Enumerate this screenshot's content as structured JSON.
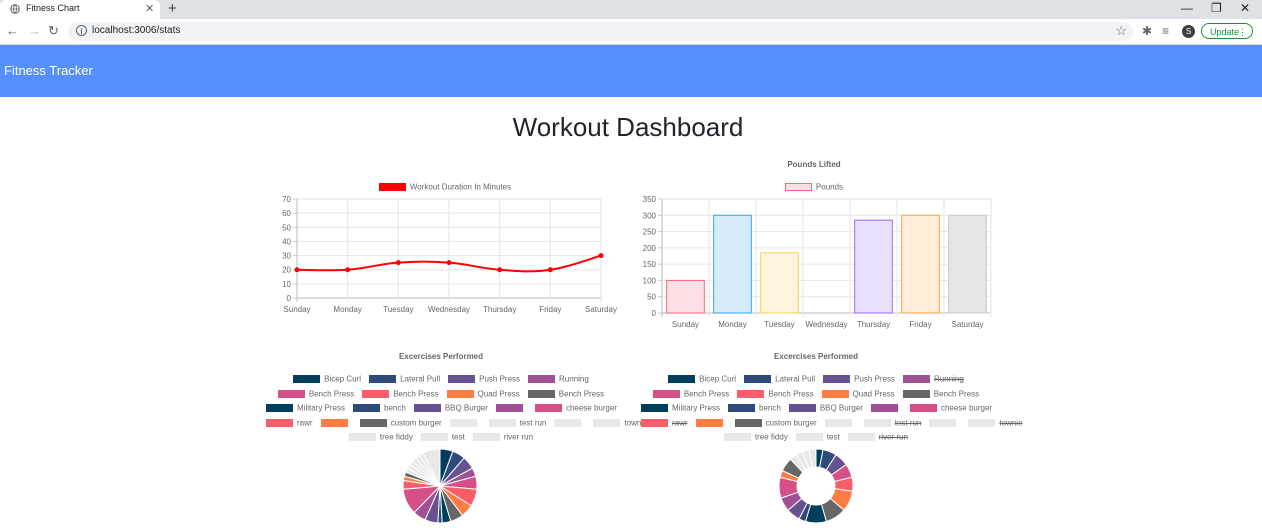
{
  "browser": {
    "tab_title": "Fitness Chart",
    "url": "localhost:3006/stats",
    "update_label": "Update",
    "avatar_letter": "S"
  },
  "navbar": {
    "brand": "Fitness Tracker"
  },
  "page": {
    "title": "Workout Dashboard"
  },
  "colors": {
    "navbar": "#558ffb",
    "line": "#ff0000"
  },
  "chart_data": [
    {
      "type": "line",
      "title": "",
      "legend": "Workout Duration In Minutes",
      "categories": [
        "Sunday",
        "Monday",
        "Tuesday",
        "Wednesday",
        "Thursday",
        "Friday",
        "Saturday"
      ],
      "values": [
        20,
        20,
        25,
        25,
        20,
        20,
        30
      ],
      "ylim": [
        0,
        70
      ],
      "yticks": [
        "0",
        "10",
        "20",
        "30",
        "40",
        "50",
        "60",
        "70"
      ],
      "color": "#ff0000",
      "grid": true
    },
    {
      "type": "bar",
      "title": "Pounds Lifted",
      "legend": "Pounds",
      "categories": [
        "Sunday",
        "Monday",
        "Tuesday",
        "Wednesday",
        "Thursday",
        "Friday",
        "Saturday"
      ],
      "values": [
        100,
        300,
        185,
        0,
        285,
        300,
        300
      ],
      "ylim": [
        0,
        350
      ],
      "yticks": [
        "0",
        "50",
        "100",
        "150",
        "200",
        "250",
        "300",
        "350"
      ],
      "fills": [
        "#ffe0e6",
        "#d7ecfb",
        "#fff4dc",
        "#dbf2f2",
        "#ebe0ff",
        "#ffecd9",
        "#e5e5e5"
      ],
      "strokes": [
        "#ff6384",
        "#36a2eb",
        "#ffcd56",
        "#4bc0c0",
        "#9966ff",
        "#ff9f40",
        "#c9cbcf"
      ],
      "grid": true
    },
    {
      "type": "pie",
      "title": "Excercises Performed",
      "labels": [
        "Bicep Curl",
        "Lateral Pull",
        "Push Press",
        "Running",
        "Bench Press",
        "Bench Press",
        "Quad Press",
        "Bench Press",
        "Military Press",
        "bench",
        "BBQ Burger",
        "",
        "cheese burger",
        "rawr",
        "",
        "custom burger",
        "",
        "test run",
        "",
        "townie",
        "tree fiddy",
        "test",
        "river run"
      ],
      "colors": [
        "#003f5c",
        "#2f4b7c",
        "#665191",
        "#a05195",
        "#d45087",
        "#f95d6a",
        "#ff7c43",
        "#666666",
        "#003f5c",
        "#2f4b7c",
        "#665191",
        "#a05195",
        "#d45087",
        "#f95d6a",
        "#ff7c43",
        "#666666",
        "#e8e8e8",
        "#e8e8e8",
        "#e8e8e8",
        "#e8e8e8",
        "#e8e8e8",
        "#e8e8e8",
        "#e8e8e8"
      ],
      "values": [
        3,
        3,
        3,
        2,
        3,
        4,
        3,
        3,
        2,
        1,
        3,
        3,
        6,
        2,
        1,
        1,
        1,
        1,
        1,
        1,
        1,
        1,
        4
      ]
    },
    {
      "type": "doughnut",
      "title": "Excercises Performed",
      "labels": [
        "Bicep Curl",
        "Lateral Pull",
        "Push Press",
        "Running",
        "Bench Press",
        "Bench Press",
        "Quad Press",
        "Bench Press",
        "Military Press",
        "bench",
        "BBQ Burger",
        "",
        "cheese burger",
        "rawr",
        "",
        "custom burger",
        "",
        "test run",
        "",
        "townie",
        "tree fiddy",
        "test",
        "river run"
      ],
      "hidden": [
        false,
        false,
        false,
        true,
        false,
        false,
        false,
        false,
        false,
        false,
        false,
        false,
        false,
        true,
        false,
        false,
        false,
        true,
        false,
        true,
        false,
        false,
        true
      ],
      "colors": [
        "#003f5c",
        "#2f4b7c",
        "#665191",
        "#a05195",
        "#d45087",
        "#f95d6a",
        "#ff7c43",
        "#666666",
        "#003f5c",
        "#2f4b7c",
        "#665191",
        "#a05195",
        "#d45087",
        "#f95d6a",
        "#ff7c43",
        "#666666",
        "#e8e8e8",
        "#e8e8e8",
        "#e8e8e8",
        "#e8e8e8",
        "#e8e8e8",
        "#e8e8e8",
        "#e8e8e8"
      ],
      "values": [
        1,
        2,
        2,
        0,
        2,
        2,
        3,
        3,
        3,
        1,
        2,
        2,
        3,
        0,
        1,
        2,
        1,
        0,
        1,
        0,
        1,
        1,
        0
      ]
    }
  ]
}
